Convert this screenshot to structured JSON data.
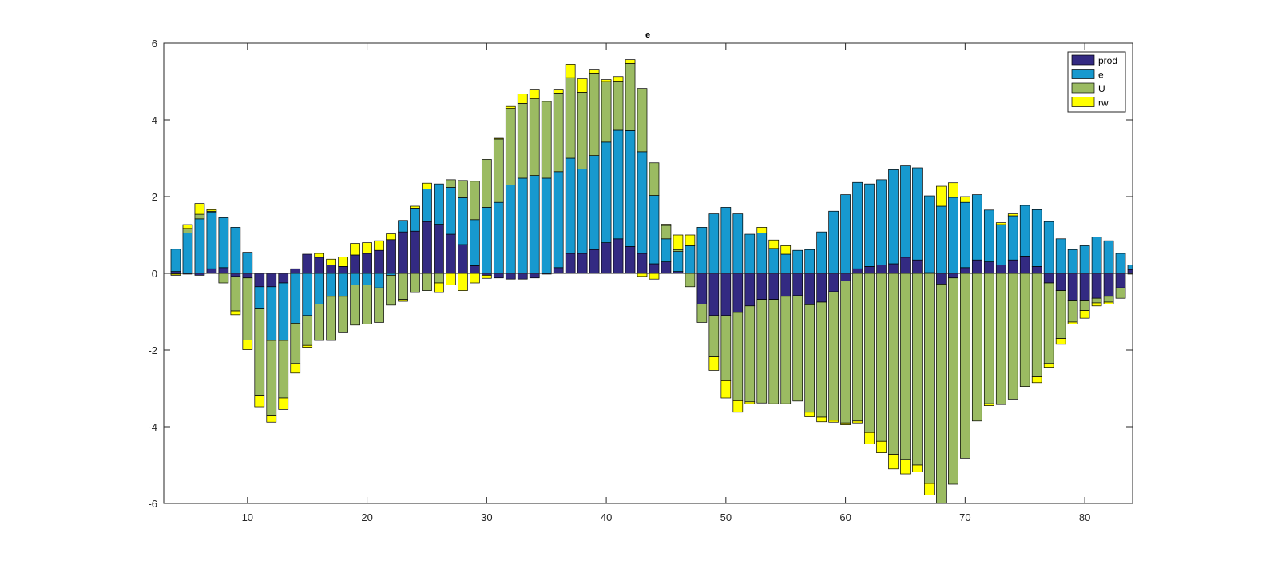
{
  "chart_data": {
    "type": "bar",
    "stacked": true,
    "title": "e",
    "xlabel": "",
    "ylabel": "",
    "xlim": [
      3,
      84
    ],
    "ylim": [
      -6,
      6
    ],
    "xticks": [
      10,
      20,
      30,
      40,
      50,
      60,
      70,
      80
    ],
    "yticks": [
      -6,
      -4,
      -2,
      0,
      2,
      4,
      6
    ],
    "legend_position": "top-right",
    "grid": false,
    "x": [
      4,
      5,
      6,
      7,
      8,
      9,
      10,
      11,
      12,
      13,
      14,
      15,
      16,
      17,
      18,
      19,
      20,
      21,
      22,
      23,
      24,
      25,
      26,
      27,
      28,
      29,
      30,
      31,
      32,
      33,
      34,
      35,
      36,
      37,
      38,
      39,
      40,
      41,
      42,
      43,
      44,
      45,
      46,
      47,
      48,
      49,
      50,
      51,
      52,
      53,
      54,
      55,
      56,
      57,
      58,
      59,
      60,
      61,
      62,
      63,
      64,
      65,
      66,
      67,
      68,
      69,
      70,
      71,
      72,
      73,
      74,
      75,
      76,
      77,
      78,
      79,
      80,
      81,
      82,
      83,
      84
    ],
    "series": [
      {
        "name": "prod",
        "color": "#332a82",
        "values": [
          0.05,
          -0.02,
          -0.05,
          0.12,
          0.15,
          -0.08,
          -0.12,
          -0.35,
          -0.35,
          -0.25,
          0.12,
          0.5,
          0.42,
          0.22,
          0.18,
          0.48,
          0.52,
          0.6,
          0.88,
          1.08,
          1.1,
          1.35,
          1.28,
          1.02,
          0.75,
          0.2,
          -0.05,
          -0.12,
          -0.15,
          -0.15,
          -0.12,
          -0.02,
          0.15,
          0.52,
          0.52,
          0.62,
          0.8,
          0.9,
          0.7,
          0.52,
          0.25,
          0.3,
          0.05,
          0.0,
          -0.8,
          -1.1,
          -1.1,
          -1.02,
          -0.85,
          -0.68,
          -0.68,
          -0.6,
          -0.58,
          -0.82,
          -0.75,
          -0.48,
          -0.2,
          0.12,
          0.18,
          0.22,
          0.25,
          0.42,
          0.35,
          0.02,
          -0.28,
          -0.12,
          0.15,
          0.35,
          0.3,
          0.22,
          0.35,
          0.45,
          0.18,
          -0.25,
          -0.45,
          -0.72,
          -0.72,
          -0.65,
          -0.6,
          -0.38,
          0.1
        ]
      },
      {
        "name": "e",
        "color": "#1799cf",
        "values": [
          0.58,
          1.05,
          1.42,
          1.48,
          1.3,
          1.2,
          0.55,
          -0.58,
          -1.4,
          -1.5,
          -1.3,
          -1.1,
          -0.8,
          -0.6,
          -0.6,
          -0.3,
          -0.3,
          -0.38,
          -0.05,
          0.3,
          0.6,
          0.85,
          1.05,
          1.22,
          1.22,
          1.2,
          1.72,
          1.85,
          2.3,
          2.48,
          2.55,
          2.48,
          2.5,
          2.48,
          2.2,
          2.45,
          2.62,
          2.83,
          3.02,
          2.65,
          1.78,
          0.6,
          0.52,
          0.72,
          1.2,
          1.55,
          1.72,
          1.55,
          1.02,
          1.05,
          0.65,
          0.5,
          0.6,
          0.62,
          1.08,
          1.62,
          2.05,
          2.25,
          2.15,
          2.22,
          2.45,
          2.38,
          2.4,
          2.0,
          1.75,
          1.98,
          1.7,
          1.7,
          1.35,
          1.05,
          1.15,
          1.32,
          1.48,
          1.35,
          0.9,
          0.62,
          0.72,
          0.95,
          0.85,
          0.52,
          0.12
        ]
      },
      {
        "name": "U",
        "color": "#9bbb62",
        "values": [
          -0.02,
          0.12,
          0.12,
          0.02,
          -0.25,
          -0.9,
          -1.62,
          -2.25,
          -1.95,
          -1.5,
          -1.05,
          -0.78,
          -0.95,
          -1.15,
          -0.95,
          -1.05,
          -1.02,
          -0.9,
          -0.78,
          -0.68,
          -0.5,
          -0.45,
          -0.25,
          0.2,
          0.45,
          1.0,
          1.25,
          1.65,
          2.0,
          1.95,
          2.0,
          2.0,
          2.05,
          2.1,
          2.0,
          2.15,
          1.58,
          1.28,
          1.75,
          1.65,
          0.85,
          0.35,
          0.05,
          -0.35,
          -0.48,
          -1.08,
          -1.7,
          -2.3,
          -2.5,
          -2.7,
          -2.72,
          -2.8,
          -2.75,
          -2.8,
          -3.0,
          -3.35,
          -3.7,
          -3.85,
          -4.15,
          -4.38,
          -4.72,
          -4.85,
          -5.0,
          -5.48,
          -5.75,
          -5.38,
          -4.82,
          -3.85,
          -3.4,
          -3.42,
          -3.28,
          -2.95,
          -2.7,
          -2.1,
          -1.25,
          -0.55,
          -0.25,
          -0.12,
          -0.15,
          -0.27,
          -0.02
        ]
      },
      {
        "name": "rw",
        "color": "#ffff00",
        "values": [
          -0.03,
          0.1,
          0.28,
          0.04,
          0.0,
          -0.1,
          -0.25,
          -0.3,
          -0.18,
          -0.3,
          -0.25,
          -0.05,
          0.1,
          0.15,
          0.25,
          0.3,
          0.28,
          0.25,
          0.15,
          -0.05,
          0.05,
          0.15,
          -0.25,
          -0.3,
          -0.45,
          -0.25,
          -0.08,
          0.02,
          0.05,
          0.25,
          0.25,
          0.0,
          0.1,
          0.35,
          0.35,
          0.1,
          0.05,
          0.12,
          0.1,
          -0.08,
          -0.15,
          0.03,
          0.38,
          0.28,
          0.0,
          -0.35,
          -0.45,
          -0.3,
          -0.05,
          0.15,
          0.22,
          0.22,
          0.0,
          -0.12,
          -0.12,
          -0.05,
          -0.05,
          -0.05,
          -0.3,
          -0.3,
          -0.38,
          -0.38,
          -0.18,
          -0.3,
          0.52,
          0.38,
          0.15,
          0.0,
          -0.05,
          0.05,
          0.05,
          0.0,
          -0.15,
          -0.1,
          -0.15,
          -0.05,
          -0.2,
          -0.08,
          -0.05,
          0.0,
          0.0
        ]
      }
    ]
  }
}
